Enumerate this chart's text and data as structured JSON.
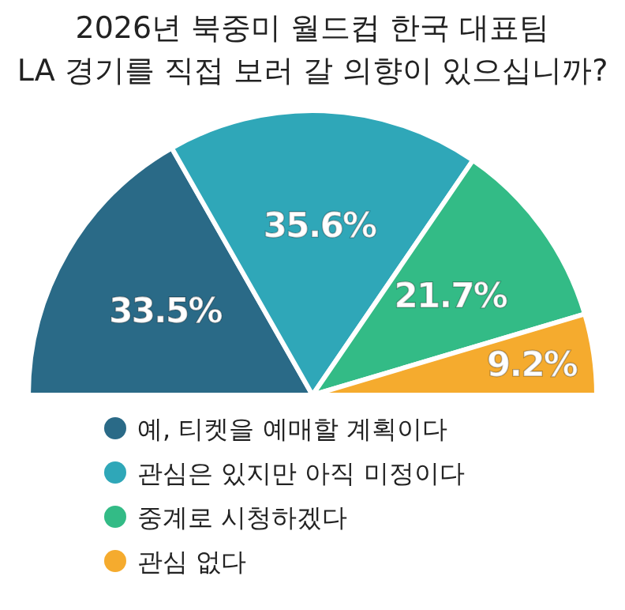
{
  "chart_data": {
    "type": "pie",
    "title": "2026년 북중미 월드컵 한국 대표팀\nLA 경기를 직접 보러 갈 의향이 있으십니까?",
    "categories": [
      "예, 티켓을 예매할 계획이다",
      "관심은 있지만 아직 미정이다",
      "중계로 시청하겠다",
      "관심 없다"
    ],
    "values": [
      33.5,
      35.6,
      21.7,
      9.2
    ],
    "colors": [
      "#2a6a87",
      "#2fa7b8",
      "#33bb86",
      "#f5ab2e"
    ],
    "value_labels": [
      "33.5%",
      "35.6%",
      "21.7%",
      "9.2%"
    ],
    "legend": "bottom"
  }
}
